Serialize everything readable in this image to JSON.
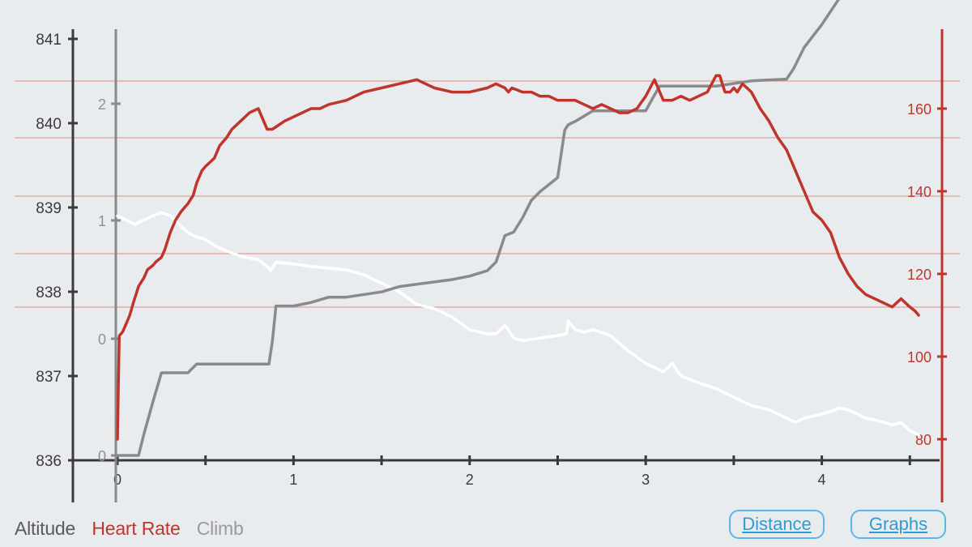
{
  "legend": {
    "altitude": {
      "label": "Altitude",
      "color": "#5a5a5a"
    },
    "heart_rate": {
      "label": "Heart Rate",
      "color": "#c0352b"
    },
    "climb": {
      "label": "Climb",
      "color": "#9a9a9a"
    }
  },
  "buttons": {
    "distance": "Distance",
    "graphs": "Graphs"
  },
  "chart_data": {
    "type": "line",
    "title": "",
    "xlabel": "",
    "x_ticks": [
      0,
      1,
      2,
      3,
      4
    ],
    "x_range": [
      0,
      4.6
    ],
    "axes": {
      "left": {
        "ticks": [
          836,
          837,
          838,
          839,
          840,
          841
        ],
        "range": [
          836,
          841
        ]
      },
      "inner": {
        "ticks": [
          0,
          0,
          1,
          2
        ],
        "range": [
          0,
          2.3
        ]
      },
      "right": {
        "ticks": [
          80,
          100,
          120,
          140,
          160
        ],
        "range": [
          78,
          168
        ]
      }
    },
    "grid": "horizontal red lines",
    "series": [
      {
        "name": "Heart Rate",
        "axis": "right",
        "color": "#c0352b",
        "x": [
          0.0,
          0.01,
          0.03,
          0.05,
          0.07,
          0.09,
          0.12,
          0.15,
          0.17,
          0.2,
          0.22,
          0.25,
          0.27,
          0.3,
          0.33,
          0.36,
          0.38,
          0.4,
          0.43,
          0.45,
          0.48,
          0.5,
          0.55,
          0.58,
          0.62,
          0.65,
          0.7,
          0.75,
          0.8,
          0.85,
          0.88,
          0.95,
          1.0,
          1.05,
          1.1,
          1.15,
          1.2,
          1.3,
          1.4,
          1.5,
          1.6,
          1.7,
          1.75,
          1.8,
          1.9,
          2.0,
          2.1,
          2.15,
          2.2,
          2.22,
          2.24,
          2.3,
          2.35,
          2.4,
          2.45,
          2.5,
          2.55,
          2.6,
          2.65,
          2.7,
          2.75,
          2.8,
          2.85,
          2.9,
          2.95,
          3.0,
          3.05,
          3.1,
          3.15,
          3.2,
          3.25,
          3.3,
          3.35,
          3.4,
          3.42,
          3.45,
          3.48,
          3.5,
          3.52,
          3.55,
          3.6,
          3.65,
          3.7,
          3.75,
          3.8,
          3.85,
          3.9,
          3.95,
          4.0,
          4.05,
          4.1,
          4.15,
          4.2,
          4.25,
          4.3,
          4.35,
          4.4,
          4.45,
          4.5,
          4.53,
          4.55
        ],
        "values": [
          80,
          105,
          106,
          108,
          110,
          113,
          117,
          119,
          121,
          122,
          123,
          124,
          126,
          130,
          133,
          135,
          136,
          137,
          139,
          142,
          145,
          146,
          148,
          151,
          153,
          155,
          157,
          159,
          160,
          155,
          155,
          157,
          158,
          159,
          160,
          160,
          161,
          162,
          164,
          165,
          166,
          167,
          166,
          165,
          164,
          164,
          165,
          166,
          165,
          164,
          165,
          164,
          164,
          163,
          163,
          162,
          162,
          162,
          161,
          160,
          161,
          160,
          159,
          159,
          160,
          163,
          167,
          162,
          162,
          163,
          162,
          163,
          164,
          168,
          168,
          164,
          164,
          165,
          164,
          166,
          164,
          160,
          157,
          153,
          150,
          145,
          140,
          135,
          133,
          130,
          124,
          120,
          117,
          115,
          114,
          113,
          112,
          114,
          112,
          111,
          110
        ]
      },
      {
        "name": "Climb",
        "axis": "inner",
        "color": "#8a8a8a",
        "x": [
          0.0,
          0.02,
          0.12,
          0.15,
          0.2,
          0.25,
          0.3,
          0.4,
          0.45,
          0.5,
          0.6,
          0.7,
          0.8,
          0.86,
          0.88,
          0.9,
          0.92,
          1.0,
          1.1,
          1.2,
          1.25,
          1.3,
          1.5,
          1.6,
          1.9,
          2.0,
          2.1,
          2.15,
          2.2,
          2.25,
          2.3,
          2.35,
          2.4,
          2.5,
          2.54,
          2.56,
          2.6,
          2.7,
          2.8,
          2.9,
          3.0,
          3.05,
          3.08,
          3.2,
          3.4,
          3.6,
          3.8,
          3.84,
          3.9,
          4.0,
          4.1,
          4.2,
          4.3,
          4.4,
          4.5,
          4.55
        ],
        "values": [
          0.0,
          0.0,
          0.0,
          0.12,
          0.3,
          0.47,
          0.47,
          0.47,
          0.52,
          0.52,
          0.52,
          0.52,
          0.52,
          0.52,
          0.65,
          0.85,
          0.85,
          0.85,
          0.87,
          0.9,
          0.9,
          0.9,
          0.93,
          0.96,
          1.0,
          1.02,
          1.05,
          1.1,
          1.25,
          1.27,
          1.35,
          1.45,
          1.5,
          1.58,
          1.85,
          1.88,
          1.9,
          1.96,
          1.96,
          1.96,
          1.96,
          2.05,
          2.1,
          2.1,
          2.1,
          2.13,
          2.14,
          2.2,
          2.32,
          2.45,
          2.6,
          2.72,
          2.87,
          3.02,
          3.12,
          3.15
        ]
      },
      {
        "name": "Altitude",
        "axis": "left",
        "color": "#ffffff",
        "x": [
          0.0,
          0.02,
          0.05,
          0.1,
          0.15,
          0.2,
          0.25,
          0.3,
          0.35,
          0.4,
          0.45,
          0.5,
          0.55,
          0.6,
          0.7,
          0.8,
          0.85,
          0.87,
          0.9,
          1.0,
          1.1,
          1.2,
          1.3,
          1.4,
          1.5,
          1.6,
          1.7,
          1.8,
          1.9,
          2.0,
          2.1,
          2.15,
          2.2,
          2.22,
          2.25,
          2.3,
          2.4,
          2.5,
          2.55,
          2.56,
          2.6,
          2.65,
          2.7,
          2.8,
          2.9,
          3.0,
          3.05,
          3.1,
          3.15,
          3.2,
          3.3,
          3.4,
          3.5,
          3.6,
          3.7,
          3.8,
          3.85,
          3.9,
          4.0,
          4.05,
          4.1,
          4.15,
          4.2,
          4.25,
          4.3,
          4.4,
          4.45,
          4.5,
          4.55
        ],
        "values": [
          838.9,
          838.88,
          838.85,
          838.8,
          838.85,
          838.9,
          838.94,
          838.9,
          838.8,
          838.7,
          838.65,
          838.62,
          838.55,
          838.5,
          838.42,
          838.38,
          838.3,
          838.25,
          838.35,
          838.33,
          838.3,
          838.28,
          838.26,
          838.2,
          838.1,
          838.0,
          837.85,
          837.8,
          837.7,
          837.55,
          837.5,
          837.5,
          837.6,
          837.55,
          837.45,
          837.42,
          837.45,
          837.48,
          837.5,
          837.65,
          837.55,
          837.52,
          837.55,
          837.48,
          837.3,
          837.15,
          837.1,
          837.05,
          837.15,
          837.0,
          836.92,
          836.85,
          836.75,
          836.65,
          836.6,
          836.5,
          836.45,
          836.5,
          836.55,
          836.58,
          836.62,
          836.6,
          836.55,
          836.5,
          836.48,
          836.42,
          836.45,
          836.35,
          836.3
        ]
      }
    ]
  }
}
